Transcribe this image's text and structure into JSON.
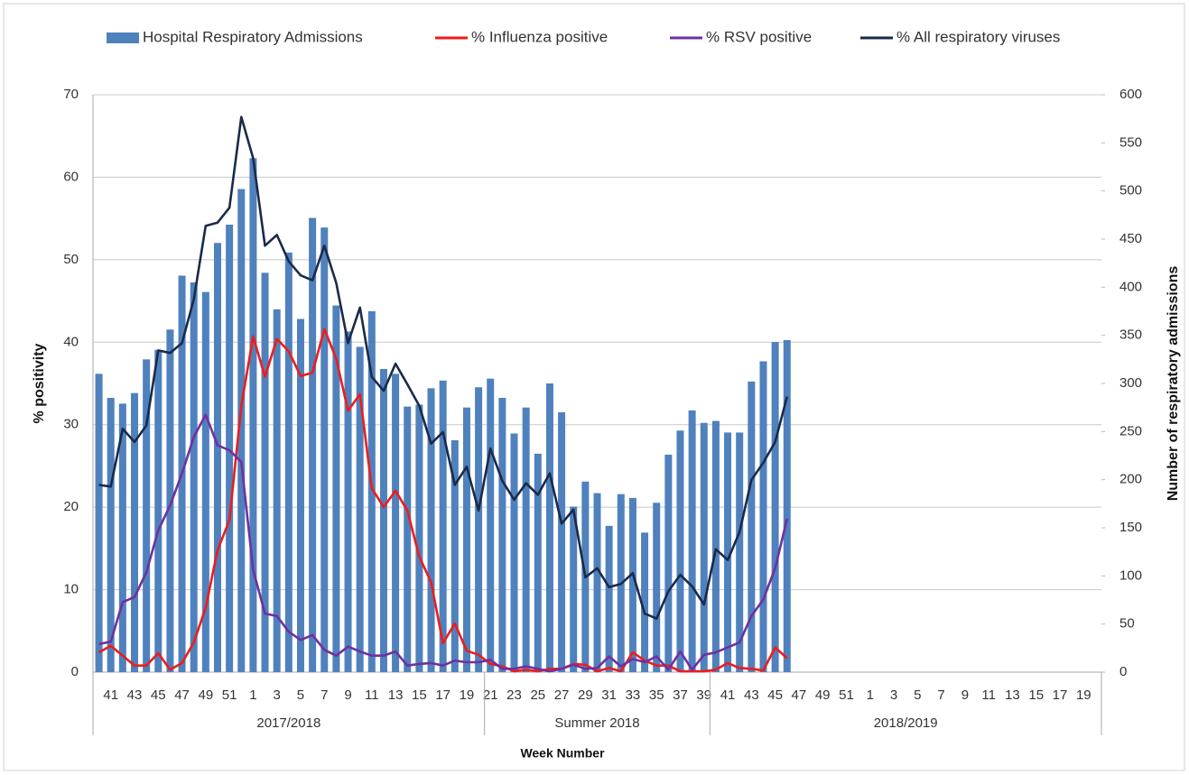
{
  "chart_data": {
    "type": "combo",
    "categories": [
      null,
      "41",
      null,
      "43",
      null,
      "45",
      null,
      "47",
      null,
      "49",
      null,
      "51",
      null,
      "1",
      null,
      "3",
      null,
      "5",
      null,
      "7",
      null,
      "9",
      null,
      "11",
      null,
      "13",
      null,
      "15",
      null,
      "17",
      null,
      "19",
      null,
      "21",
      null,
      "23",
      null,
      "25",
      null,
      "27",
      null,
      "29",
      null,
      "31",
      null,
      "33",
      null,
      "35",
      null,
      "37",
      null,
      "39",
      null,
      "41",
      null,
      "43",
      null,
      "45",
      null,
      "47",
      null,
      "49",
      null,
      "51",
      null,
      "1",
      null,
      "3",
      null,
      "5",
      null,
      "7",
      null,
      "9",
      null,
      "11",
      null,
      "13",
      null,
      "15",
      null,
      "17",
      null,
      "19",
      null
    ],
    "x_groups": [
      {
        "label": "2017/2018",
        "span": 33
      },
      {
        "label": "Summer 2018",
        "span": 19
      },
      {
        "label": "2018/2019",
        "span": 33
      }
    ],
    "xlabel": "Week Number",
    "ylabel": "% positivity",
    "y2label": "Number of respiratory admissions",
    "ylim": [
      0,
      70
    ],
    "yticks": [
      0,
      10,
      20,
      30,
      40,
      50,
      60,
      70
    ],
    "y2lim": [
      0,
      600
    ],
    "y2ticks": [
      0,
      50,
      100,
      150,
      200,
      250,
      300,
      350,
      400,
      450,
      500,
      550,
      600
    ],
    "grid": true,
    "series": [
      {
        "name": "Hospital Respiratory Admissions",
        "type": "bar",
        "axis": "y2",
        "color": "#4f81bd",
        "values": [
          310,
          285,
          279,
          290,
          325,
          335,
          356,
          412,
          405,
          395,
          446,
          465,
          502,
          534,
          415,
          377,
          436,
          367,
          472,
          462,
          381,
          354,
          338,
          375,
          315,
          310,
          276,
          278,
          295,
          303,
          241,
          275,
          296,
          305,
          285,
          248,
          275,
          227,
          300,
          270,
          172,
          198,
          186,
          152,
          185,
          181,
          145,
          176,
          226,
          251,
          272,
          259,
          261,
          249,
          249,
          302,
          323,
          343,
          345,
          null,
          null,
          null,
          null,
          null,
          null,
          null,
          null,
          null,
          null,
          null,
          null,
          null,
          null,
          null,
          null,
          null,
          null,
          null,
          null,
          null,
          null,
          null,
          null,
          null,
          null
        ]
      },
      {
        "name": "% Influenza positive",
        "type": "line",
        "color": "#ee1c1c",
        "values": [
          2.4,
          3.2,
          2.0,
          0.8,
          0.8,
          2.3,
          0.3,
          1.1,
          3.6,
          7.8,
          14.8,
          18.4,
          32.3,
          40.7,
          35.8,
          40.4,
          38.9,
          35.9,
          36.3,
          41.6,
          38.0,
          31.7,
          33.7,
          22.3,
          20.0,
          22.0,
          19.6,
          14.0,
          10.9,
          3.5,
          5.9,
          2.6,
          2.1,
          1.0,
          0.7,
          0.1,
          0.3,
          0.1,
          0.4,
          0.4,
          1.0,
          0.9,
          0.1,
          0.5,
          0.1,
          2.4,
          1.4,
          0.8,
          0.8,
          0.1,
          0.1,
          0.1,
          0.3,
          1.1,
          0.5,
          0.4,
          0.2,
          3.0,
          1.7,
          null,
          null,
          null,
          null,
          null,
          null,
          null,
          null,
          null,
          null,
          null,
          null,
          null,
          null,
          null,
          null,
          null,
          null,
          null,
          null,
          null,
          null,
          null,
          null,
          null,
          null
        ]
      },
      {
        "name": "% RSV positive",
        "type": "line",
        "color": "#7030a0",
        "values": [
          3.4,
          3.7,
          8.5,
          9.1,
          12.1,
          17.2,
          20.2,
          24.1,
          28.5,
          31.2,
          27.5,
          26.9,
          25.5,
          12.4,
          7.1,
          6.8,
          4.9,
          3.9,
          4.5,
          2.7,
          2.0,
          3.1,
          2.5,
          2.0,
          2.0,
          2.5,
          0.8,
          1.0,
          1.1,
          0.8,
          1.4,
          1.2,
          1.2,
          1.5,
          0.4,
          0.4,
          0.7,
          0.4,
          0.1,
          0.4,
          0.9,
          0.4,
          0.5,
          1.9,
          0.7,
          1.6,
          1.2,
          1.9,
          0.3,
          2.5,
          0.3,
          2.1,
          2.4,
          3.0,
          3.6,
          6.8,
          8.8,
          12.6,
          18.6,
          null,
          null,
          null,
          null,
          null,
          null,
          null,
          null,
          null,
          null,
          null,
          null,
          null,
          null,
          null,
          null,
          null,
          null,
          null,
          null,
          null,
          null,
          null,
          null,
          null,
          null
        ]
      },
      {
        "name": "% All respiratory viruses",
        "type": "line",
        "color": "#1b2a4a",
        "values": [
          22.7,
          22.5,
          29.5,
          27.9,
          29.9,
          39.0,
          38.7,
          39.9,
          45.2,
          54.1,
          54.5,
          56.3,
          67.3,
          62.3,
          51.7,
          53.0,
          49.8,
          48.1,
          47.5,
          51.7,
          47.2,
          39.9,
          44.2,
          35.8,
          34.1,
          37.4,
          34.9,
          32.3,
          27.7,
          29.1,
          22.7,
          24.9,
          19.6,
          27.1,
          23.2,
          20.9,
          22.9,
          21.5,
          24.1,
          18.0,
          19.7,
          11.5,
          12.6,
          10.3,
          10.7,
          12.0,
          7.1,
          6.5,
          9.8,
          11.8,
          10.4,
          8.2,
          14.9,
          13.6,
          17.0,
          23.3,
          25.4,
          27.9,
          33.4,
          null,
          null,
          null,
          null,
          null,
          null,
          null,
          null,
          null,
          null,
          null,
          null,
          null,
          null,
          null,
          null,
          null,
          null,
          null,
          null,
          null,
          null,
          null,
          null,
          null,
          null
        ]
      }
    ]
  }
}
